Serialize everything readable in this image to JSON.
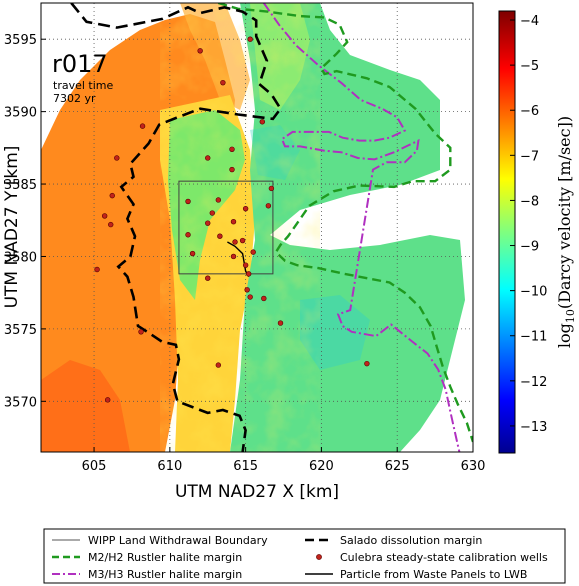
{
  "chart_data": {
    "type": "heatmap",
    "run_label": "r017",
    "annotation": [
      "travel time",
      "7302 yr"
    ],
    "xlabel": "UTM NAD27 X [km]",
    "ylabel": "UTM NAD27 Y [km]",
    "xlim": [
      601.5,
      630
    ],
    "ylim": [
      3566.5,
      3597.5
    ],
    "x_ticks": [
      605,
      610,
      615,
      620,
      625,
      630
    ],
    "y_ticks": [
      3570,
      3575,
      3580,
      3585,
      3590,
      3595
    ],
    "grid": true,
    "colorbar": {
      "label": "log10(Darcy velocity [m/sec])",
      "label_prefix": "log",
      "label_sub": "10",
      "label_rest": "(Darcy velocity [m/sec])",
      "range": [
        -13.6,
        -3.8
      ],
      "ticks": [
        -4,
        -5,
        -6,
        -7,
        -8,
        -9,
        -10,
        -11,
        -12,
        -13
      ],
      "colormap": "jet"
    },
    "wipp_boundary": {
      "x": [
        610.6,
        616.8
      ],
      "y": [
        3578.8,
        3585.2
      ]
    },
    "salado_margin": [
      [
        603.5,
        3597.5
      ],
      [
        604.5,
        3596.2
      ],
      [
        606.5,
        3595.8
      ],
      [
        609.5,
        3596.4
      ],
      [
        611.2,
        3597.2
      ],
      [
        612,
        3596.8
      ],
      [
        613.6,
        3597.2
      ],
      [
        614.8,
        3596.9
      ],
      [
        615.7,
        3596.3
      ],
      [
        615.7,
        3595.2
      ],
      [
        616.4,
        3593.5
      ],
      [
        615.9,
        3591.9
      ],
      [
        616.7,
        3591.2
      ],
      [
        617.3,
        3590.2
      ],
      [
        616.8,
        3589.5
      ],
      [
        614.5,
        3589.8
      ],
      [
        612,
        3590.2
      ],
      [
        610.5,
        3589.6
      ],
      [
        609.3,
        3589.1
      ],
      [
        608.6,
        3587.8
      ],
      [
        607.4,
        3586.4
      ],
      [
        607.6,
        3585.5
      ],
      [
        606.8,
        3584.8
      ],
      [
        607.6,
        3583.6
      ],
      [
        607.2,
        3582.6
      ],
      [
        607.7,
        3581.4
      ],
      [
        607.4,
        3580
      ],
      [
        606.6,
        3579.3
      ],
      [
        607.2,
        3578.6
      ],
      [
        607.6,
        3577.2
      ],
      [
        607.9,
        3575.2
      ],
      [
        608.5,
        3574.8
      ],
      [
        609.5,
        3574.1
      ],
      [
        610.4,
        3573.9
      ],
      [
        610.6,
        3572.9
      ],
      [
        610.2,
        3571.2
      ],
      [
        610.5,
        3570
      ],
      [
        611.5,
        3569.6
      ],
      [
        612.5,
        3569.2
      ],
      [
        613.5,
        3569.4
      ],
      [
        614.6,
        3569
      ],
      [
        615,
        3568
      ],
      [
        614.8,
        3566.5
      ]
    ],
    "m2h2_margin": [
      [
        613.2,
        3597.5
      ],
      [
        614.5,
        3597.1
      ],
      [
        616.5,
        3596.9
      ],
      [
        618.5,
        3596.6
      ],
      [
        620.2,
        3596.5
      ],
      [
        621.2,
        3596
      ],
      [
        621.7,
        3594.8
      ],
      [
        621,
        3594
      ],
      [
        620,
        3593
      ],
      [
        620.2,
        3592.6
      ],
      [
        621,
        3592.8
      ],
      [
        623,
        3592.3
      ],
      [
        624.5,
        3591.7
      ],
      [
        626.2,
        3590.2
      ],
      [
        627.5,
        3588.5
      ],
      [
        628.5,
        3587.5
      ],
      [
        628.5,
        3586
      ],
      [
        627.5,
        3585.2
      ],
      [
        626,
        3585.2
      ],
      [
        624.8,
        3584.8
      ],
      [
        622.5,
        3584.9
      ],
      [
        620.8,
        3584.5
      ],
      [
        619.2,
        3583.5
      ],
      [
        618.4,
        3582.3
      ],
      [
        617.8,
        3581.4
      ],
      [
        617.3,
        3580.8
      ],
      [
        617,
        3580.3
      ],
      [
        617.6,
        3579.7
      ],
      [
        618.4,
        3579.4
      ],
      [
        619.8,
        3579.2
      ],
      [
        621.5,
        3578.8
      ],
      [
        623,
        3578.5
      ],
      [
        624.5,
        3578.2
      ],
      [
        625.5,
        3577.5
      ],
      [
        626.5,
        3576.5
      ],
      [
        627.2,
        3575.2
      ],
      [
        627.6,
        3573.8
      ],
      [
        628,
        3572.4
      ],
      [
        628.5,
        3571
      ],
      [
        629,
        3569.8
      ],
      [
        629.6,
        3568.5
      ],
      [
        630,
        3567.2
      ]
    ],
    "m3h3_margin": [
      [
        616.2,
        3597.5
      ],
      [
        617.2,
        3596
      ],
      [
        618.3,
        3594.6
      ],
      [
        619.8,
        3593.2
      ],
      [
        621.3,
        3592
      ],
      [
        622.6,
        3590.8
      ],
      [
        624,
        3590.2
      ],
      [
        625,
        3589.6
      ],
      [
        625.5,
        3588.7
      ],
      [
        624.5,
        3588.2
      ],
      [
        623.5,
        3588
      ],
      [
        622.5,
        3588
      ],
      [
        621.4,
        3588.2
      ],
      [
        620.5,
        3588.6
      ],
      [
        619.3,
        3588.6
      ],
      [
        618.1,
        3588.6
      ],
      [
        617.4,
        3588.1
      ],
      [
        617.6,
        3587.6
      ],
      [
        618.6,
        3587.6
      ],
      [
        620.2,
        3587.3
      ],
      [
        621.3,
        3587.2
      ],
      [
        622.4,
        3586.8
      ],
      [
        623.5,
        3586.7
      ],
      [
        624.8,
        3587.2
      ],
      [
        625.8,
        3587.7
      ],
      [
        626.4,
        3588
      ],
      [
        626.3,
        3587.3
      ],
      [
        625.5,
        3586.5
      ],
      [
        624.3,
        3586.5
      ],
      [
        623.4,
        3586
      ],
      [
        621.9,
        3576.3
      ],
      [
        621.1,
        3576
      ],
      [
        621.4,
        3575.2
      ],
      [
        622,
        3574.8
      ],
      [
        623.6,
        3574.5
      ],
      [
        624.6,
        3575.3
      ],
      [
        625.9,
        3574.2
      ],
      [
        627,
        3573.3
      ],
      [
        627.7,
        3572.2
      ],
      [
        628.2,
        3570.8
      ],
      [
        628.5,
        3569.3
      ],
      [
        628.8,
        3567.9
      ],
      [
        629.1,
        3566.5
      ]
    ],
    "particle_path": [
      [
        613.8,
        3581
      ],
      [
        614.3,
        3580.7
      ],
      [
        614.8,
        3580.2
      ],
      [
        614.9,
        3579.6
      ],
      [
        615,
        3579
      ],
      [
        615.2,
        3578.6
      ]
    ],
    "wells": [
      [
        612,
        3594.2
      ],
      [
        613.5,
        3592
      ],
      [
        615.3,
        3595
      ],
      [
        616.1,
        3589.3
      ],
      [
        608.2,
        3589
      ],
      [
        606.5,
        3586.8
      ],
      [
        614.1,
        3587.4
      ],
      [
        612.5,
        3586.8
      ],
      [
        614.1,
        3586
      ],
      [
        616.7,
        3584.7
      ],
      [
        613.2,
        3583.9
      ],
      [
        612.8,
        3583
      ],
      [
        616.5,
        3583.5
      ],
      [
        611.2,
        3583.8
      ],
      [
        612.5,
        3582.3
      ],
      [
        614.2,
        3582.4
      ],
      [
        615,
        3583.3
      ],
      [
        611.2,
        3581.5
      ],
      [
        613.3,
        3581.4
      ],
      [
        614.3,
        3581
      ],
      [
        614.8,
        3581.1
      ],
      [
        615.5,
        3580.3
      ],
      [
        611.5,
        3580.2
      ],
      [
        614.2,
        3580
      ],
      [
        615,
        3579.4
      ],
      [
        615.2,
        3578.8
      ],
      [
        612.5,
        3578.5
      ],
      [
        615.1,
        3577.7
      ],
      [
        615.3,
        3577.2
      ],
      [
        616.2,
        3577.1
      ],
      [
        617.3,
        3575.4
      ],
      [
        613.2,
        3572.5
      ],
      [
        608.1,
        3574.8
      ],
      [
        605.2,
        3579.1
      ],
      [
        606.1,
        3582.2
      ],
      [
        605.7,
        3582.8
      ],
      [
        606.2,
        3584.2
      ],
      [
        605.9,
        3570.1
      ],
      [
        623,
        3572.6
      ]
    ]
  },
  "legend": {
    "wipp": "WIPP Land Withdrawal Boundary",
    "m2h2": "M2/H2 Rustler halite margin",
    "m3h3": "M3/H3 Rustler halite margin",
    "salado": "Salado dissolution margin",
    "wells": "Culebra steady-state calibration wells",
    "particle": "Particle from Waste Panels to LWB"
  },
  "colors": {
    "orange_field": "#ff8c1a",
    "green_field": "#58e08a",
    "salado": "#000000",
    "m2h2": "#1f9a1f",
    "m3h3": "#b030c0",
    "well": "#c0231b"
  }
}
